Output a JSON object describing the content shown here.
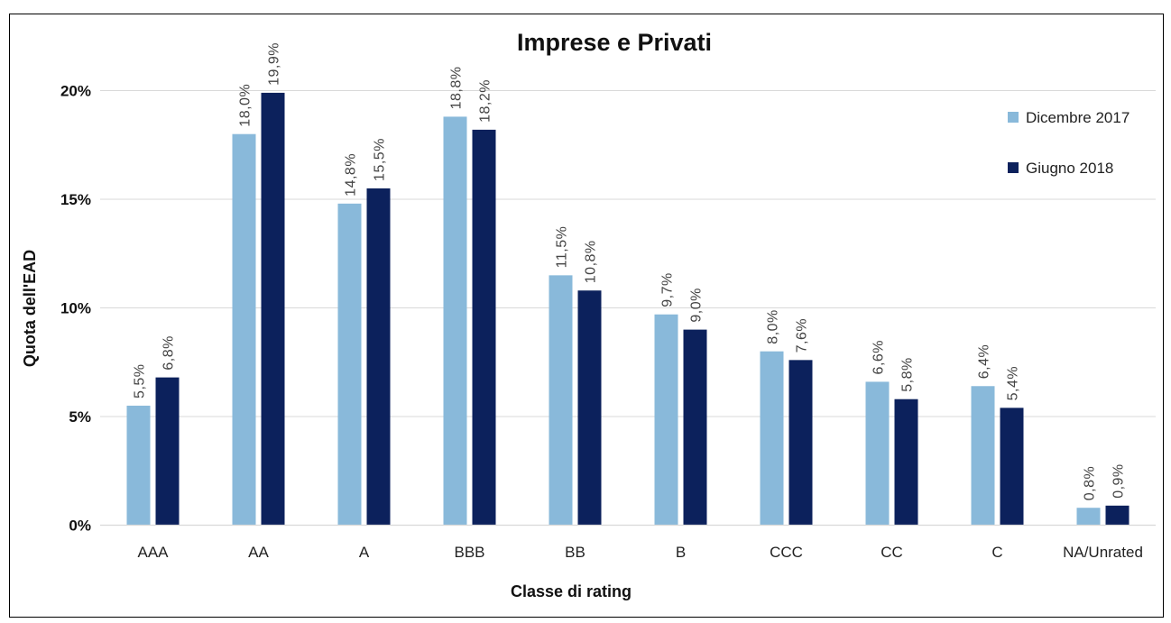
{
  "chart_data": {
    "type": "bar",
    "title": "Imprese e Privati",
    "xlabel": "Classe di rating",
    "ylabel": "Quota dell'EAD",
    "ylim": [
      0,
      22
    ],
    "yticks": [
      0,
      5,
      10,
      15,
      20
    ],
    "ytick_labels": [
      "0%",
      "5%",
      "10%",
      "15%",
      "20%"
    ],
    "grid": "horizontal",
    "legend_position": "top-right",
    "categories": [
      "AAA",
      "AA",
      "A",
      "BBB",
      "BB",
      "B",
      "CCC",
      "CC",
      "C",
      "NA/Unrated"
    ],
    "series": [
      {
        "name": "Dicembre 2017",
        "color": "#89B9DA",
        "values": [
          5.5,
          18.0,
          14.8,
          18.8,
          11.5,
          9.7,
          8.0,
          6.6,
          6.4,
          0.8
        ],
        "labels": [
          "5,5%",
          "18,0%",
          "14,8%",
          "18,8%",
          "11,5%",
          "9,7%",
          "8,0%",
          "6,6%",
          "6,4%",
          "0,8%"
        ]
      },
      {
        "name": "Giugno 2018",
        "color": "#0C215C",
        "values": [
          6.8,
          19.9,
          15.5,
          18.2,
          10.8,
          9.0,
          7.6,
          5.8,
          5.4,
          0.9
        ],
        "labels": [
          "6,8%",
          "19,9%",
          "15,5%",
          "18,2%",
          "10,8%",
          "9,0%",
          "7,6%",
          "5,8%",
          "5,4%",
          "0,9%"
        ]
      }
    ]
  }
}
